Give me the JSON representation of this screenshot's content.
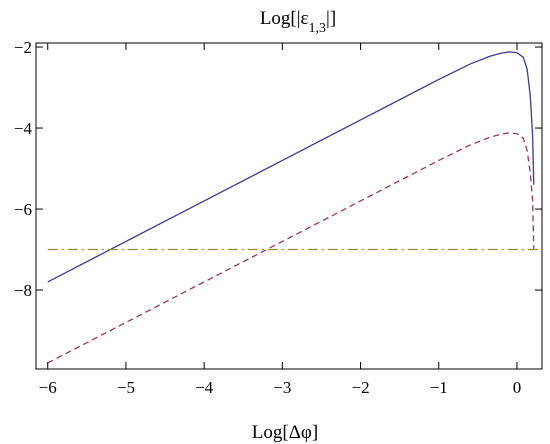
{
  "chart_data": {
    "type": "line",
    "title": "Log[|ε1,3|]",
    "xlabel": "Log[Δφ]",
    "ylabel": "",
    "xlim": [
      -6.15,
      0.32
    ],
    "ylim": [
      -9.95,
      -1.9
    ],
    "x_ticks": [
      -6,
      -5,
      -4,
      -3,
      -2,
      -1,
      0
    ],
    "x_tick_labels": [
      "−6",
      "−5",
      "−4",
      "−3",
      "−2",
      "−1",
      "0"
    ],
    "y_ticks": [
      -8,
      -6,
      -4,
      -2
    ],
    "y_tick_labels": [
      "−8",
      "−6",
      "−4",
      "−2"
    ],
    "grid": false,
    "series": [
      {
        "style": "solid",
        "color": "#3a3a9c",
        "points": [
          [
            -6.0,
            -7.8
          ],
          [
            -5.0,
            -6.8
          ],
          [
            -4.0,
            -5.8
          ],
          [
            -3.0,
            -4.8
          ],
          [
            -2.0,
            -3.8
          ],
          [
            -1.0,
            -2.8
          ],
          [
            -0.6,
            -2.42
          ],
          [
            -0.35,
            -2.23
          ],
          [
            -0.2,
            -2.15
          ],
          [
            -0.1,
            -2.12
          ],
          [
            0.0,
            -2.14
          ],
          [
            0.08,
            -2.25
          ],
          [
            0.13,
            -2.55
          ],
          [
            0.17,
            -3.2
          ],
          [
            0.2,
            -4.2
          ],
          [
            0.215,
            -5.4
          ]
        ]
      },
      {
        "style": "dashed",
        "color": "#a0306a",
        "points": [
          [
            -6.0,
            -9.8
          ],
          [
            -5.0,
            -8.8
          ],
          [
            -4.0,
            -7.8
          ],
          [
            -3.0,
            -6.8
          ],
          [
            -2.0,
            -5.8
          ],
          [
            -1.0,
            -4.8
          ],
          [
            -0.6,
            -4.42
          ],
          [
            -0.35,
            -4.23
          ],
          [
            -0.2,
            -4.15
          ],
          [
            -0.1,
            -4.12
          ],
          [
            0.0,
            -4.14
          ],
          [
            0.08,
            -4.25
          ],
          [
            0.13,
            -4.55
          ],
          [
            0.17,
            -5.1
          ],
          [
            0.2,
            -5.8
          ],
          [
            0.215,
            -7.0
          ]
        ]
      },
      {
        "style": "dashdot",
        "color": "#9a8a2a",
        "points": [
          [
            -6.0,
            -7.0
          ],
          [
            0.3,
            -7.0
          ]
        ]
      }
    ]
  }
}
